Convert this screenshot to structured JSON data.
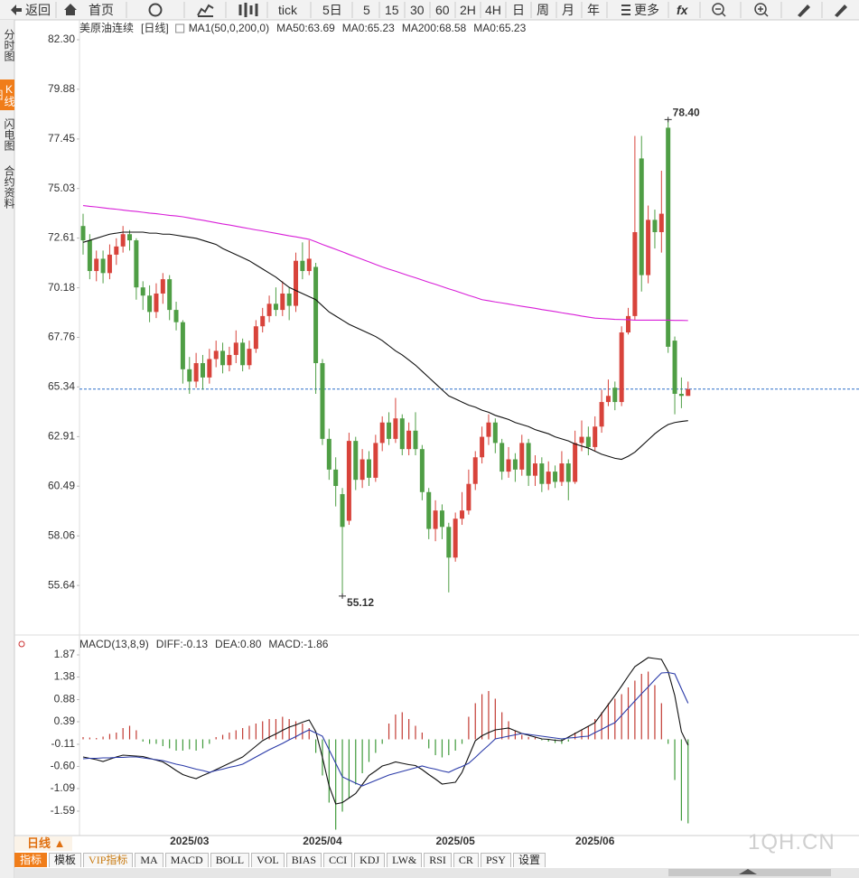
{
  "toolbar": [
    "返回",
    "首页",
    "tick",
    "5日",
    "5",
    "15",
    "30",
    "60",
    "2H",
    "4H",
    "日",
    "周",
    "月",
    "年",
    "更多",
    "fx"
  ],
  "sidebar": [
    "分时图",
    "K线图",
    "闪电图",
    "合约资料"
  ],
  "period_button": "日线 ▲",
  "tabs": [
    "指标",
    "模板",
    "VIP指标",
    "MA",
    "MACD",
    "BOLL",
    "VOL",
    "BIAS",
    "CCI",
    "KDJ",
    "LW&",
    "RSI",
    "CR",
    "PSY",
    "设置"
  ],
  "watermark": "1QH.CN",
  "chart_data": [
    {
      "type": "candlestick",
      "title": "美原油连续",
      "period": "[日线]",
      "indicator_labels": [
        {
          "text": "MA1(50,0,200,0)",
          "color": "#222222"
        },
        {
          "text": "MA50:63.69",
          "color": "#222222"
        },
        {
          "text": "MA0:65.23",
          "color": "#2a3aa8"
        },
        {
          "text": "MA200:68.58",
          "color": "#d81ed8"
        },
        {
          "text": "MA0:65.23",
          "color": "#f08c1e"
        }
      ],
      "categories": [
        null,
        null,
        null,
        null,
        null,
        null,
        null,
        null,
        null,
        null,
        null,
        null,
        null,
        null,
        null,
        null,
        "2025/03",
        null,
        null,
        null,
        null,
        null,
        null,
        null,
        null,
        null,
        null,
        null,
        null,
        null,
        null,
        null,
        null,
        null,
        null,
        null,
        "2025/04",
        null,
        null,
        null,
        null,
        null,
        null,
        null,
        null,
        null,
        null,
        null,
        null,
        null,
        null,
        null,
        null,
        null,
        null,
        null,
        "2025/05",
        null,
        null,
        null,
        null,
        null,
        null,
        null,
        null,
        null,
        null,
        null,
        null,
        null,
        null,
        null,
        null,
        null,
        null,
        null,
        null,
        "2025/06",
        null,
        null,
        null,
        null,
        null,
        null,
        null,
        null,
        null,
        null,
        null,
        null,
        null,
        null
      ],
      "open": [
        73.2,
        72.5,
        71.0,
        71.6,
        70.9,
        71.8,
        72.2,
        72.8,
        72.5,
        70.2,
        69.8,
        69.0,
        69.9,
        70.6,
        69.1,
        68.5,
        66.2,
        65.6,
        66.5,
        65.8,
        66.7,
        67.1,
        66.4,
        66.9,
        67.5,
        66.4,
        67.2,
        68.3,
        68.8,
        69.4,
        69.1,
        69.9,
        69.3,
        71.5,
        71.0,
        71.2,
        66.5,
        62.8,
        61.3,
        60.1,
        58.8,
        62.7,
        60.8,
        61.8,
        60.9,
        62.6,
        63.6,
        62.8,
        63.8,
        62.3,
        63.2,
        62.3,
        60.2,
        58.4,
        59.3,
        58.5,
        57.0,
        58.9,
        59.3,
        60.6,
        61.9,
        62.9,
        63.6,
        62.6,
        61.2,
        61.8,
        61.3,
        62.6,
        61.0,
        61.6,
        60.6,
        61.2,
        60.7,
        61.6,
        60.7,
        62.6,
        62.9,
        62.4,
        63.4,
        64.6,
        65.3,
        64.6,
        68.0,
        68.8,
        76.5,
        70.8,
        73.5,
        72.9,
        78.0,
        67.6,
        65.0,
        64.9
      ],
      "high": [
        73.8,
        72.8,
        72.0,
        72.0,
        72.3,
        72.6,
        73.2,
        73.0,
        72.6,
        70.5,
        70.3,
        70.4,
        70.9,
        70.8,
        69.5,
        68.6,
        66.8,
        67.0,
        66.9,
        67.2,
        67.6,
        67.5,
        67.3,
        68.1,
        67.7,
        67.6,
        68.6,
        69.2,
        69.8,
        70.2,
        70.5,
        70.2,
        71.9,
        72.4,
        72.5,
        71.4,
        66.7,
        63.3,
        61.9,
        60.4,
        63.1,
        62.9,
        62.3,
        62.2,
        63.0,
        63.9,
        64.1,
        64.8,
        64.0,
        63.6,
        64.1,
        62.5,
        60.4,
        59.8,
        59.6,
        58.7,
        59.2,
        60.2,
        61.3,
        62.2,
        63.4,
        64.0,
        63.8,
        62.8,
        62.4,
        62.1,
        63.0,
        62.8,
        62.0,
        61.9,
        61.7,
        61.5,
        62.2,
        61.8,
        63.2,
        63.7,
        63.4,
        63.9,
        65.2,
        65.7,
        65.6,
        68.3,
        69.2,
        77.6,
        77.6,
        74.2,
        74.0,
        75.9,
        78.4,
        67.8,
        65.8,
        65.6
      ],
      "low": [
        71.8,
        70.6,
        70.5,
        70.4,
        70.6,
        71.3,
        71.9,
        72.0,
        69.6,
        69.1,
        68.5,
        68.7,
        69.4,
        68.6,
        68.1,
        65.5,
        65.0,
        65.3,
        65.2,
        65.5,
        66.3,
        66.0,
        66.1,
        66.5,
        66.1,
        66.2,
        67.0,
        68.0,
        68.5,
        68.8,
        68.8,
        68.6,
        69.0,
        70.6,
        70.8,
        65.0,
        62.5,
        60.8,
        59.5,
        55.12,
        58.6,
        60.3,
        60.4,
        60.5,
        60.7,
        62.2,
        62.5,
        62.6,
        62.0,
        62.0,
        62.0,
        59.8,
        57.9,
        57.8,
        57.9,
        55.3,
        56.8,
        58.6,
        59.1,
        60.3,
        61.6,
        62.5,
        62.1,
        60.8,
        60.9,
        60.7,
        61.0,
        60.5,
        60.5,
        60.2,
        60.3,
        60.4,
        60.5,
        59.8,
        60.6,
        62.2,
        62.0,
        62.2,
        63.1,
        64.4,
        64.2,
        64.4,
        67.9,
        68.6,
        70.0,
        70.4,
        72.1,
        71.9,
        67.0,
        64.0,
        64.3,
        64.9
      ],
      "close": [
        72.5,
        71.0,
        71.6,
        70.9,
        71.8,
        72.2,
        72.8,
        72.5,
        70.2,
        69.8,
        69.0,
        69.9,
        70.6,
        69.1,
        68.5,
        66.2,
        65.6,
        66.5,
        65.8,
        66.7,
        67.1,
        66.4,
        66.9,
        67.5,
        66.4,
        67.2,
        68.3,
        68.8,
        69.4,
        69.1,
        69.9,
        69.3,
        71.5,
        71.0,
        71.6,
        66.5,
        62.8,
        61.3,
        60.5,
        58.5,
        62.7,
        60.8,
        61.8,
        60.9,
        62.6,
        63.6,
        62.8,
        63.8,
        62.3,
        63.2,
        62.3,
        60.2,
        58.4,
        59.3,
        58.5,
        57.0,
        58.9,
        59.3,
        60.6,
        61.9,
        62.9,
        63.6,
        62.6,
        61.2,
        61.8,
        61.3,
        62.6,
        61.0,
        61.6,
        60.6,
        61.2,
        60.7,
        61.6,
        60.7,
        62.6,
        62.9,
        62.4,
        63.4,
        64.6,
        64.9,
        64.6,
        68.0,
        68.8,
        72.9,
        70.8,
        73.5,
        72.9,
        73.8,
        67.3,
        65.0,
        64.9,
        65.23
      ],
      "up_color": "#d8433b",
      "down_color": "#4f9e45",
      "lines": [
        {
          "color": "#111111",
          "values": [
            72.4,
            72.5,
            72.6,
            72.7,
            72.8,
            72.85,
            72.9,
            72.9,
            72.9,
            72.9,
            72.85,
            72.85,
            72.8,
            72.8,
            72.75,
            72.7,
            72.65,
            72.6,
            72.5,
            72.4,
            72.3,
            72.1,
            71.95,
            71.8,
            71.65,
            71.5,
            71.3,
            71.1,
            70.9,
            70.7,
            70.45,
            70.2,
            70.05,
            69.9,
            69.75,
            69.6,
            69.3,
            69.0,
            68.8,
            68.6,
            68.4,
            68.25,
            68.1,
            67.95,
            67.8,
            67.6,
            67.35,
            67.1,
            66.9,
            66.65,
            66.4,
            66.1,
            65.8,
            65.5,
            65.2,
            64.9,
            64.75,
            64.6,
            64.45,
            64.35,
            64.2,
            64.1,
            63.95,
            63.85,
            63.75,
            63.6,
            63.5,
            63.4,
            63.25,
            63.15,
            63.05,
            62.9,
            62.8,
            62.7,
            62.55,
            62.45,
            62.35,
            62.2,
            62.05,
            61.95,
            61.85,
            61.8,
            61.95,
            62.15,
            62.45,
            62.75,
            63.05,
            63.3,
            63.5,
            63.6,
            63.65,
            63.69
          ]
        },
        {
          "color": "#d81ed8",
          "values": [
            74.2,
            74.16,
            74.13,
            74.09,
            74.05,
            74.02,
            73.98,
            73.94,
            73.91,
            73.87,
            73.83,
            73.8,
            73.76,
            73.72,
            73.69,
            73.65,
            73.59,
            73.53,
            73.48,
            73.42,
            73.36,
            73.3,
            73.25,
            73.19,
            73.13,
            73.07,
            73.01,
            72.96,
            72.9,
            72.84,
            72.78,
            72.72,
            72.67,
            72.61,
            72.55,
            72.43,
            72.3,
            72.18,
            72.06,
            71.94,
            71.81,
            71.69,
            71.57,
            71.45,
            71.32,
            71.2,
            71.09,
            70.99,
            70.88,
            70.77,
            70.67,
            70.56,
            70.45,
            70.35,
            70.24,
            70.13,
            70.03,
            69.92,
            69.81,
            69.71,
            69.6,
            69.55,
            69.49,
            69.44,
            69.39,
            69.33,
            69.28,
            69.23,
            69.18,
            69.12,
            69.07,
            69.02,
            68.96,
            68.91,
            68.86,
            68.8,
            68.75,
            68.7,
            68.68,
            68.66,
            68.64,
            68.63,
            68.62,
            68.6,
            68.6,
            68.6,
            68.6,
            68.6,
            68.6,
            68.59,
            68.59,
            68.58
          ]
        }
      ],
      "price_line": 65.23,
      "price_line_color": "#2a6fc9",
      "annotations": [
        {
          "value": 78.4,
          "label": "78.40",
          "color": "#d8433b"
        },
        {
          "value": 55.12,
          "label": "55.12",
          "color": "#3f8f36"
        }
      ],
      "ylim": [
        53.35,
        83.27
      ],
      "yticks": [
        {
          "value": 82.3,
          "label": "82.30"
        },
        79.88,
        77.45,
        75.03,
        72.61,
        70.18,
        67.76,
        65.34,
        62.91,
        60.49,
        58.06,
        55.64
      ],
      "grid": false
    },
    {
      "type": "macd",
      "title": "MACD(13,8,9)",
      "indicator_labels": [
        {
          "text": "DIFF:-0.13",
          "color": "#222222"
        },
        {
          "text": "DEA:0.80",
          "color": "#2a3aa8"
        },
        {
          "text": "MACD:-1.86",
          "color": "#d81ed8"
        }
      ],
      "lines": [
        {
          "color": "#111111",
          "values": [
            -0.39,
            -0.42,
            -0.45,
            -0.49,
            -0.44,
            -0.39,
            -0.35,
            -0.36,
            -0.37,
            -0.38,
            -0.42,
            -0.46,
            -0.5,
            -0.59,
            -0.69,
            -0.78,
            -0.83,
            -0.87,
            -0.8,
            -0.74,
            -0.67,
            -0.6,
            -0.53,
            -0.46,
            -0.39,
            -0.27,
            -0.15,
            -0.03,
            0.05,
            0.12,
            0.2,
            0.27,
            0.32,
            0.38,
            0.43,
            0.17,
            -0.4,
            -1.03,
            -1.43,
            -1.4,
            -1.3,
            -1.2,
            -1.0,
            -0.8,
            -0.7,
            -0.59,
            -0.55,
            -0.5,
            -0.53,
            -0.56,
            -0.58,
            -0.67,
            -0.78,
            -0.88,
            -0.99,
            -0.97,
            -0.95,
            -0.73,
            -0.38,
            -0.03,
            0.08,
            0.15,
            0.21,
            0.23,
            0.25,
            0.19,
            0.13,
            0.09,
            0.05,
            0.01,
            0.0,
            -0.02,
            -0.03,
            0.05,
            0.13,
            0.21,
            0.29,
            0.37,
            0.57,
            0.77,
            0.97,
            1.18,
            1.4,
            1.61,
            1.71,
            1.81,
            1.79,
            1.77,
            1.5,
            0.97,
            0.17,
            -0.13
          ]
        },
        {
          "color": "#2a3aa8",
          "values": [
            -0.43,
            -0.42,
            -0.42,
            -0.41,
            -0.41,
            -0.4,
            -0.4,
            -0.39,
            -0.39,
            -0.41,
            -0.43,
            -0.45,
            -0.47,
            -0.51,
            -0.55,
            -0.58,
            -0.62,
            -0.66,
            -0.69,
            -0.73,
            -0.69,
            -0.66,
            -0.62,
            -0.59,
            -0.55,
            -0.47,
            -0.39,
            -0.31,
            -0.23,
            -0.16,
            -0.09,
            -0.01,
            0.06,
            0.14,
            0.21,
            0.14,
            0.07,
            -0.23,
            -0.53,
            -0.83,
            -0.9,
            -0.97,
            -1.03,
            -0.97,
            -0.91,
            -0.85,
            -0.79,
            -0.75,
            -0.71,
            -0.67,
            -0.63,
            -0.59,
            -0.63,
            -0.66,
            -0.7,
            -0.73,
            -0.66,
            -0.6,
            -0.53,
            -0.4,
            -0.26,
            -0.13,
            0.01,
            0.04,
            0.07,
            0.1,
            0.13,
            0.11,
            0.09,
            0.07,
            0.05,
            0.03,
            0.01,
            0.03,
            0.04,
            0.06,
            0.07,
            0.15,
            0.22,
            0.3,
            0.37,
            0.53,
            0.69,
            0.85,
            1.01,
            1.16,
            1.32,
            1.47,
            1.48,
            1.45,
            1.12,
            0.8
          ]
        }
      ],
      "histogram": {
        "values": [
          0.05,
          0.04,
          0.03,
          0.06,
          0.12,
          0.15,
          0.25,
          0.3,
          0.2,
          -0.05,
          -0.1,
          -0.1,
          -0.15,
          -0.2,
          -0.25,
          -0.25,
          -0.22,
          -0.25,
          -0.2,
          -0.1,
          0.05,
          0.1,
          0.15,
          0.2,
          0.25,
          0.3,
          0.35,
          0.4,
          0.45,
          0.45,
          0.5,
          0.45,
          0.4,
          0.35,
          0.25,
          -0.3,
          -0.8,
          -1.4,
          -2.0,
          -1.6,
          -1.3,
          -1.0,
          -0.75,
          -0.5,
          -0.3,
          -0.1,
          0.35,
          0.55,
          0.6,
          0.45,
          0.3,
          0.15,
          -0.2,
          -0.35,
          -0.4,
          -0.35,
          -0.25,
          -0.1,
          0.5,
          0.8,
          1.0,
          1.07,
          0.9,
          0.6,
          0.4,
          0.2,
          0.1,
          0.05,
          0.05,
          -0.02,
          -0.05,
          -0.08,
          -0.1,
          -0.05,
          0.15,
          0.2,
          0.3,
          0.45,
          0.6,
          0.8,
          0.9,
          1.0,
          1.15,
          1.3,
          1.45,
          1.5,
          1.2,
          0.8,
          -0.1,
          -0.9,
          -1.8,
          -1.86
        ],
        "up_color": "#c23b33",
        "down_color": "#3f9a3a"
      },
      "ylim": [
        -2.13,
        2.27
      ],
      "yticks": [
        1.87,
        1.38,
        0.88,
        0.39,
        -0.11,
        {
          "value": -0.6,
          "label": "-0.60"
        },
        -1.09,
        -1.59
      ]
    }
  ]
}
